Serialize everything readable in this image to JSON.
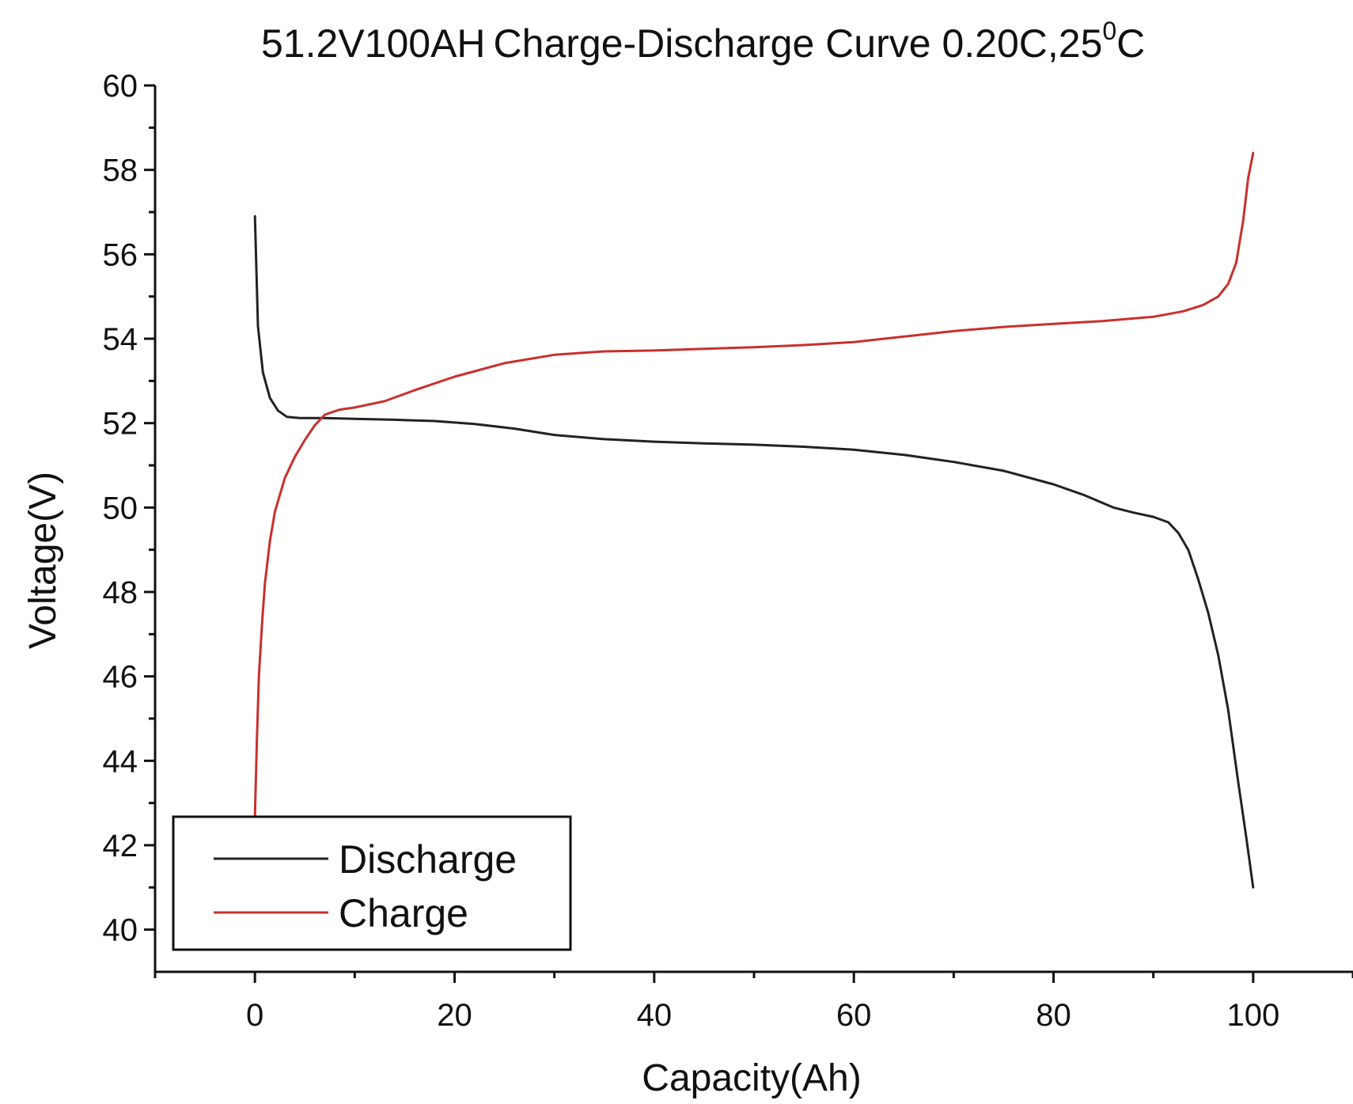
{
  "chart_data": {
    "type": "line",
    "title_main": "51.2V100AH",
    "title_rest": "Charge-Discharge Curve  0.20C,25",
    "title_degree": "0",
    "title_unit": "C",
    "xlabel": "Capacity(Ah)",
    "ylabel": "Voltage(V)",
    "xlim": [
      -10,
      110
    ],
    "ylim": [
      39,
      60
    ],
    "x_ticks": [
      0,
      20,
      40,
      60,
      80,
      100
    ],
    "y_ticks": [
      40,
      42,
      44,
      46,
      48,
      50,
      52,
      54,
      56,
      58,
      60
    ],
    "legend_position": "bottom-left",
    "series": [
      {
        "name": "Discharge",
        "color": "#222222",
        "x": [
          0,
          0.3,
          0.8,
          1.5,
          2.3,
          3.2,
          4.5,
          7,
          10,
          14,
          18,
          22,
          26,
          30,
          35,
          40,
          45,
          50,
          55,
          60,
          65,
          70,
          75,
          80,
          83,
          86,
          88,
          90,
          91.5,
          92.5,
          93.5,
          94.5,
          95.5,
          96.5,
          97.5,
          98.5,
          99.3,
          100
        ],
        "y": [
          56.9,
          54.3,
          53.2,
          52.6,
          52.3,
          52.15,
          52.12,
          52.12,
          52.1,
          52.08,
          52.05,
          51.98,
          51.87,
          51.72,
          51.62,
          51.56,
          51.52,
          51.49,
          51.44,
          51.37,
          51.25,
          51.08,
          50.87,
          50.55,
          50.3,
          50.0,
          49.88,
          49.78,
          49.65,
          49.4,
          49.0,
          48.3,
          47.5,
          46.5,
          45.2,
          43.5,
          42.2,
          41.0
        ]
      },
      {
        "name": "Charge",
        "color": "#c8302e",
        "x": [
          0,
          0.2,
          0.4,
          0.7,
          1.0,
          1.5,
          2.0,
          3.0,
          4.0,
          5.0,
          6.0,
          7.0,
          8.5,
          10,
          13,
          16,
          20,
          25,
          30,
          35,
          40,
          45,
          50,
          55,
          60,
          65,
          70,
          75,
          80,
          85,
          90,
          93,
          95,
          96.5,
          97.5,
          98.3,
          99.0,
          99.5,
          100
        ],
        "y": [
          42.7,
          44.5,
          46.0,
          47.2,
          48.2,
          49.2,
          49.9,
          50.7,
          51.2,
          51.6,
          51.95,
          52.2,
          52.32,
          52.37,
          52.52,
          52.78,
          53.1,
          53.42,
          53.62,
          53.7,
          53.72,
          53.76,
          53.8,
          53.85,
          53.92,
          54.05,
          54.18,
          54.28,
          54.35,
          54.42,
          54.52,
          54.65,
          54.8,
          55.0,
          55.3,
          55.8,
          56.8,
          57.8,
          58.4
        ]
      }
    ]
  }
}
